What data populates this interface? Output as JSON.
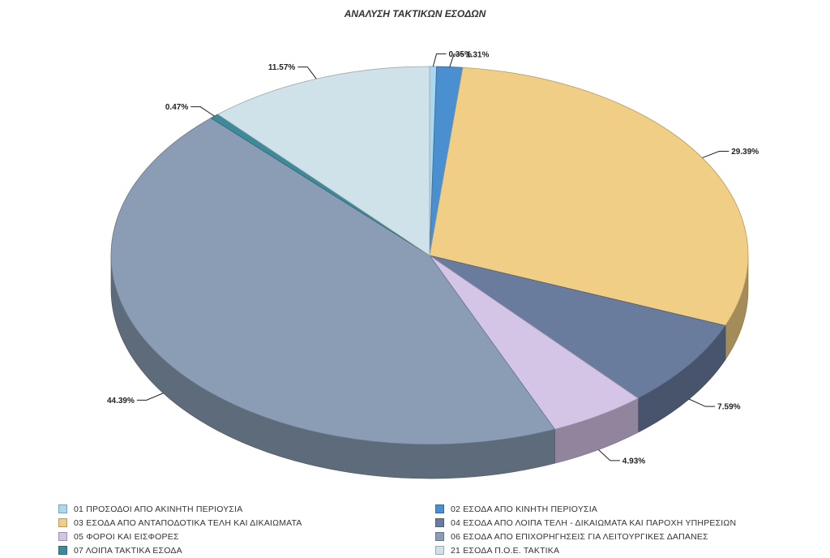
{
  "chart_data": {
    "type": "pie",
    "title": "ΑΝΑΛΥΣΗ ΤΑΚΤΙΚΩΝ ΕΣΟΔΩΝ",
    "legend_placement": "bottom",
    "slices": [
      {
        "name": "01  ΠΡΟΣΟΔΟΙ ΑΠΟ ΑΚΙΝΗΤΗ ΠΕΡΙΟΥΣΙΑ",
        "value": 0.35,
        "label": "0.35%",
        "color": "#a9d8f0"
      },
      {
        "name": "02  ΕΣΟΔΑ ΑΠΟ ΚΙΝΗΤΗ ΠΕΡΙΟΥΣΙΑ",
        "value": 1.31,
        "label": "1.31%",
        "color": "#4a8fd0"
      },
      {
        "name": "03  ΕΣΟΔΑ ΑΠΟ ΑΝΤΑΠΟΔΟΤΙΚΑ ΤΕΛΗ ΚΑΙ ΔΙΚΑΙΩΜΑΤΑ",
        "value": 29.39,
        "label": "29.39%",
        "color": "#f0ce85"
      },
      {
        "name": "04  ΕΣΟΔΑ ΑΠΟ ΛΟΙΠΑ ΤΕΛΗ - ΔΙΚΑΙΩΜΑΤΑ ΚΑΙ ΠΑΡΟΧΗ ΥΠΗΡΕΣΙΩΝ",
        "value": 7.59,
        "label": "7.59%",
        "color": "#6a7c9e"
      },
      {
        "name": "05  ΦΟΡΟΙ ΚΑΙ ΕΙΣΦΟΡΕΣ",
        "value": 4.93,
        "label": "4.93%",
        "color": "#d4c4e6"
      },
      {
        "name": "06  ΕΣΟΔΑ ΑΠΟ ΕΠΙΧΟΡΗΓΗΣΕΙΣ ΓΙΑ ΛΕΙΤΟΥΡΓΙΚΕΣ ΔΑΠΑΝΕΣ",
        "value": 44.39,
        "label": "44.39%",
        "color": "#8a9db5"
      },
      {
        "name": "07  ΛΟΙΠΑ ΤΑΚΤΙΚΑ ΕΣΟΔΑ",
        "value": 0.47,
        "label": "0.47%",
        "color": "#3f8a9a"
      },
      {
        "name": "21  ΕΣΟΔΑ Π.Ο.Ε. ΤΑΚΤΙΚΑ",
        "value": 11.57,
        "label": "11.57%",
        "color": "#cfe2ea"
      }
    ]
  }
}
